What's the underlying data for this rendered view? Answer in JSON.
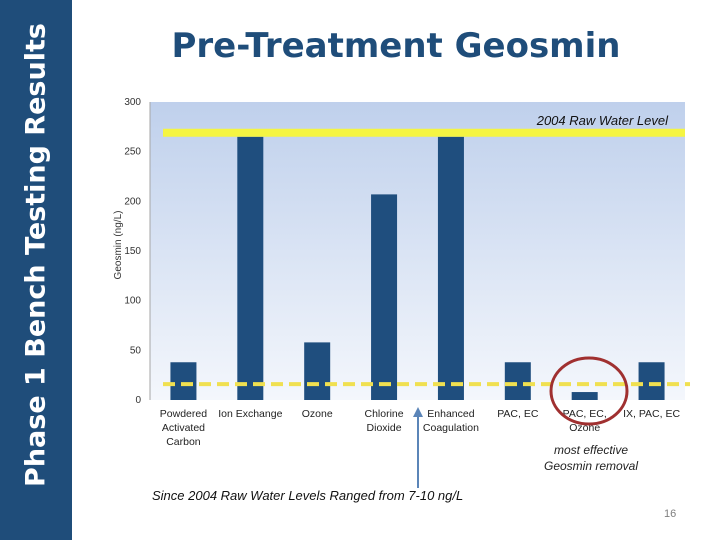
{
  "sidebar": {
    "title": "Phase 1 Bench Testing Results"
  },
  "slide": {
    "title": "Pre-Treatment Geosmin",
    "page_number": "16"
  },
  "colors": {
    "sidebar": "#1f4d7a",
    "bar": "#1f4e7e",
    "raw_water_line": "#f5f542",
    "low_level_line": "#f0e050",
    "circle": "#a03030",
    "arrow": "#5b85b8",
    "plot_bg_top": "#bfd0ec",
    "plot_bg_bottom": "#f4f7fc"
  },
  "chart_data": {
    "type": "bar",
    "title": "Pre-Treatment Geosmin",
    "ylabel": "Geosmin (ng/L)",
    "xlabel": "",
    "ylim": [
      0,
      300
    ],
    "yticks": [
      0,
      50,
      100,
      150,
      200,
      250,
      300
    ],
    "categories": [
      [
        "Powdered",
        "Activated",
        "Carbon"
      ],
      [
        "Ion Exchange"
      ],
      [
        "Ozone"
      ],
      [
        "Chlorine",
        "Dioxide"
      ],
      [
        "Enhanced",
        "Coagulation"
      ],
      [
        "PAC, EC"
      ],
      [
        "PAC, EC,",
        "Ozone"
      ],
      [
        "IX, PAC, EC"
      ]
    ],
    "values": [
      38,
      265,
      58,
      207,
      265,
      38,
      8,
      38
    ],
    "reference_lines": [
      {
        "value": 265,
        "label": "2004 Raw Water Level",
        "style": "solid"
      },
      {
        "value": 16,
        "label": "",
        "style": "dashed"
      }
    ],
    "annotations": {
      "most_effective": [
        "most effective",
        "Geosmin removal"
      ],
      "raw_range": "Since 2004 Raw Water Levels Ranged from 7-10 ng/L"
    },
    "grid": false
  }
}
